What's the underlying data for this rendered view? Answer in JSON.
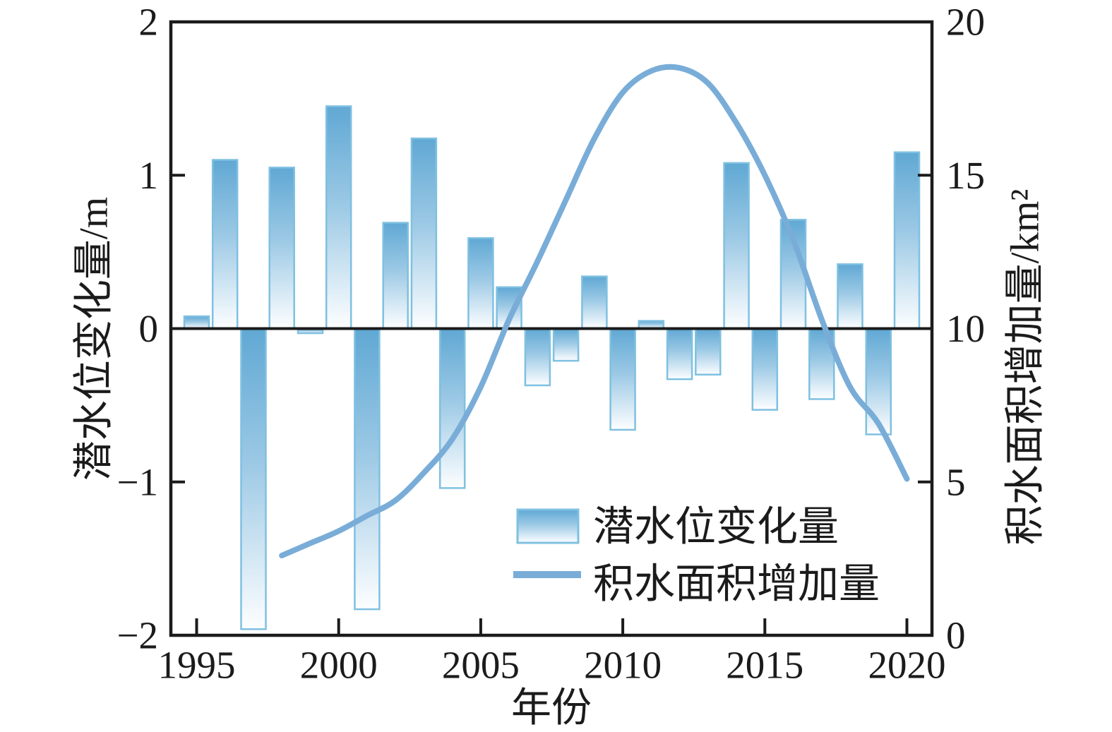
{
  "chart_data": {
    "type": "combo",
    "title": "",
    "xlabel": "年份",
    "ylabel_left": "潜水位变化量/m",
    "ylabel_right": "积水面积增加量/km²",
    "x_tick_years": [
      1995,
      2000,
      2005,
      2010,
      2015,
      2020
    ],
    "x_tick_labels": [
      "1995",
      "2000",
      "2005",
      "2010",
      "2015",
      "2020"
    ],
    "xlim": [
      1995,
      2020
    ],
    "ylim_left": [
      -2,
      2
    ],
    "yticks_left": [
      {
        "v": 2,
        "label": "2"
      },
      {
        "v": 1,
        "label": "1"
      },
      {
        "v": 0,
        "label": "0"
      },
      {
        "v": -1,
        "label": "−1"
      },
      {
        "v": -2,
        "label": "−2"
      }
    ],
    "left_tick_marks": [
      1,
      -1
    ],
    "ylim_right": [
      0,
      20
    ],
    "yticks_right": [
      {
        "v": 20,
        "label": "20"
      },
      {
        "v": 15,
        "label": "15"
      },
      {
        "v": 10,
        "label": "10"
      },
      {
        "v": 5,
        "label": "5"
      },
      {
        "v": 0,
        "label": "0"
      }
    ],
    "right_tick_marks": [
      15,
      5,
      0
    ],
    "grid": false,
    "legend_position": "inside-bottom-center",
    "series": [
      {
        "name": "潜水位变化量",
        "type": "bar",
        "axis": "left",
        "unit": "m",
        "categories": [
          1995,
          1996,
          1997,
          1998,
          1999,
          2000,
          2001,
          2002,
          2003,
          2004,
          2005,
          2006,
          2007,
          2008,
          2009,
          2010,
          2011,
          2012,
          2013,
          2014,
          2015,
          2016,
          2017,
          2018,
          2019,
          2020
        ],
        "values": [
          0.08,
          1.1,
          -1.96,
          1.05,
          -0.03,
          1.45,
          -1.83,
          0.69,
          1.24,
          -1.04,
          0.59,
          0.27,
          -0.37,
          -0.21,
          0.34,
          -0.66,
          0.05,
          -0.33,
          -0.3,
          1.08,
          -0.53,
          0.71,
          -0.46,
          0.42,
          -0.69,
          1.15
        ]
      },
      {
        "name": "积水面积增加量",
        "type": "line",
        "axis": "right",
        "unit": "km²",
        "x": [
          1998,
          1999,
          2000,
          2001,
          2002,
          2003,
          2004,
          2005,
          2006,
          2007,
          2008,
          2009,
          2010,
          2011,
          2012,
          2013,
          2014,
          2015,
          2016,
          2017,
          2018,
          2019,
          2020
        ],
        "values": [
          2.6,
          3.0,
          3.4,
          3.9,
          4.4,
          5.3,
          6.4,
          8.1,
          10.3,
          12.2,
          14.2,
          16.2,
          17.7,
          18.4,
          18.5,
          18.0,
          16.7,
          15.0,
          12.9,
          10.3,
          8.1,
          6.9,
          5.1
        ]
      }
    ],
    "legend": [
      {
        "label": "潜水位变化量",
        "swatch": "bar"
      },
      {
        "label": "积水面积增加量",
        "swatch": "line"
      }
    ],
    "colors": {
      "bar_gradient_top": "#60a8d4",
      "bar_gradient_mid": "#9cc9e5",
      "bar_gradient_bottom": "#fdfeff",
      "bar_border": "#7fc0e1",
      "line": "#79add8",
      "axis": "#1b1b1b"
    }
  }
}
